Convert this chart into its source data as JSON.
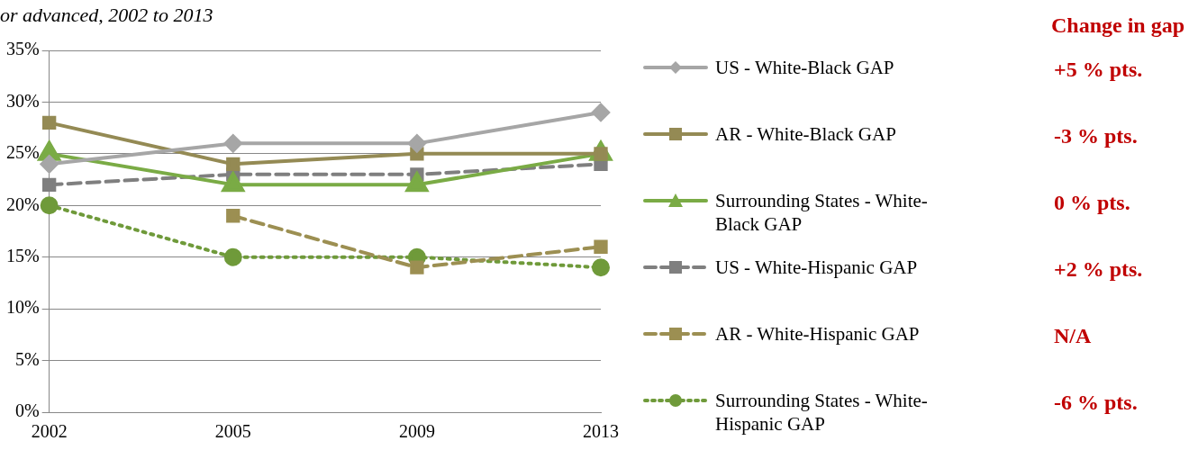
{
  "chart_data": {
    "type": "line",
    "title": "or advanced, 2002 to 2013",
    "categories": [
      "2002",
      "2005",
      "2009",
      "2013"
    ],
    "series": [
      {
        "name": "US - White-Black GAP",
        "color": "#a6a6a6",
        "values": [
          24,
          26,
          26,
          29
        ],
        "marker": "diamond",
        "line_style": "solid"
      },
      {
        "name": "AR - White-Black GAP",
        "color": "#948a54",
        "values": [
          28,
          24,
          25,
          25
        ],
        "marker": "square",
        "line_style": "solid"
      },
      {
        "name": "Surrounding States - White-Black GAP",
        "color": "#7aab45",
        "values": [
          25,
          22,
          22,
          25
        ],
        "marker": "triangle",
        "line_style": "solid"
      },
      {
        "name": "US - White-Hispanic GAP",
        "color": "#7f7f7f",
        "values": [
          22,
          23,
          23,
          24
        ],
        "marker": "square",
        "line_style": "dashed"
      },
      {
        "name": "AR - White-Hispanic GAP",
        "color": "#9c8f52",
        "values": [
          null,
          19,
          14,
          16
        ],
        "marker": "square",
        "line_style": "dashed"
      },
      {
        "name": "Surrounding States - White-Hispanic GAP",
        "color": "#6f9a3a",
        "values": [
          20,
          15,
          15,
          14
        ],
        "marker": "circle",
        "line_style": "dotted"
      }
    ],
    "ylim": [
      0,
      35
    ],
    "yticks": [
      {
        "value": 0,
        "label": "0%"
      },
      {
        "value": 5,
        "label": "5%"
      },
      {
        "value": 10,
        "label": "10%"
      },
      {
        "value": 15,
        "label": "15%"
      },
      {
        "value": 20,
        "label": "20%"
      },
      {
        "value": 25,
        "label": "25%"
      },
      {
        "value": 30,
        "label": "30%"
      },
      {
        "value": 35,
        "label": "35%"
      }
    ],
    "grid": "y",
    "legend": "right",
    "annotations": [
      "Change in gap",
      "+5 % pts.",
      "-3 % pts.",
      "0 % pts.",
      "+2 % pts.",
      "N/A",
      "-6 % pts."
    ]
  }
}
